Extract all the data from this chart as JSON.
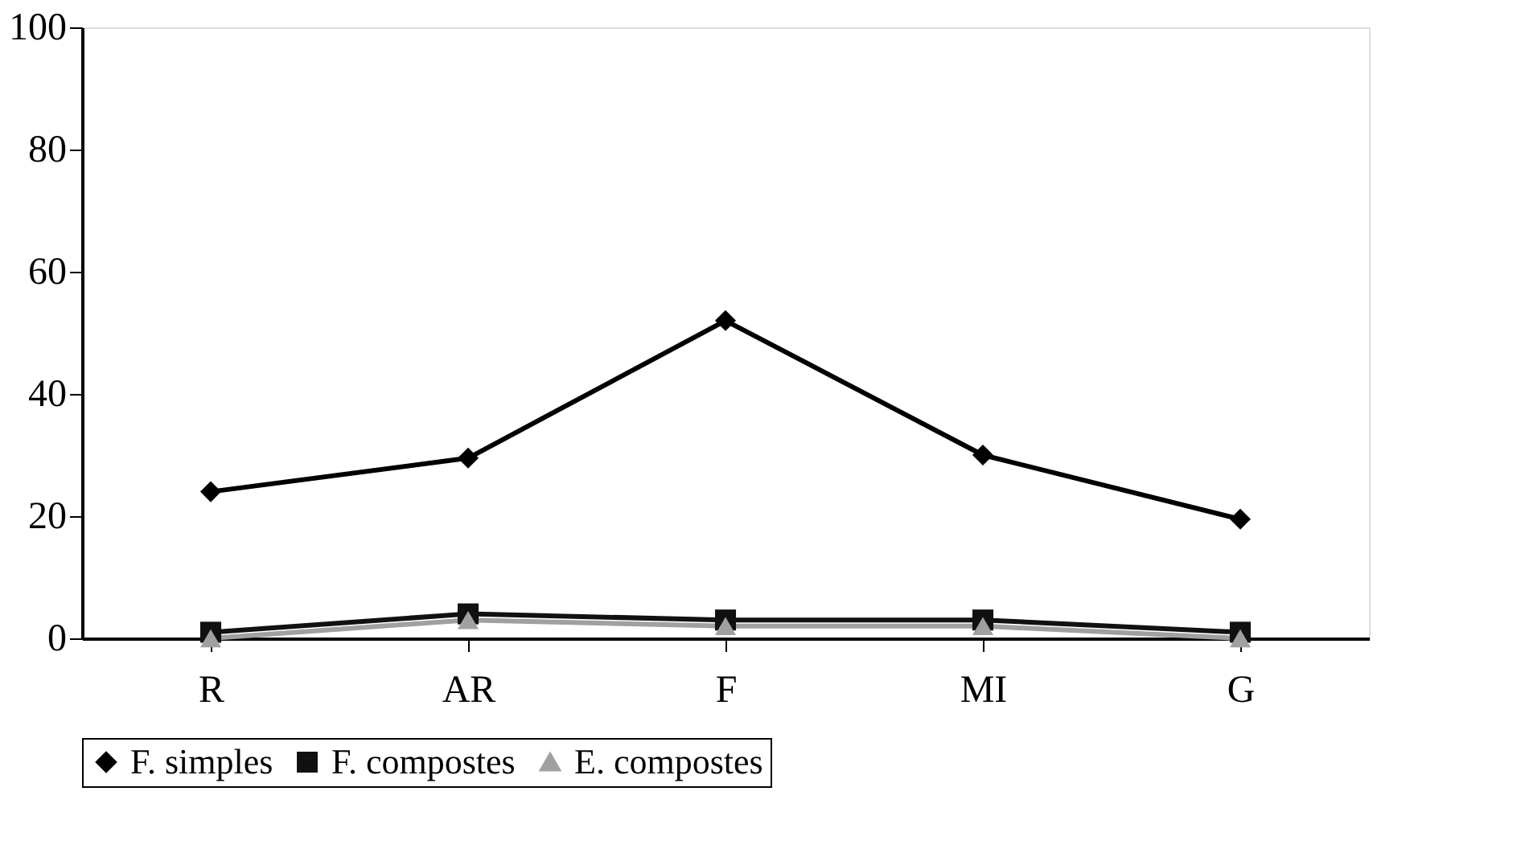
{
  "chart_data": {
    "type": "line",
    "categories": [
      "R",
      "AR",
      "F",
      "MI",
      "G"
    ],
    "series": [
      {
        "name": "F. simples",
        "color": "#000000",
        "marker": "diamond",
        "values": [
          24,
          29.5,
          52,
          30,
          19.5
        ]
      },
      {
        "name": "F. compostes",
        "color": "#111111",
        "marker": "square",
        "values": [
          1,
          4,
          3,
          3,
          1
        ]
      },
      {
        "name": "E. compostes",
        "color": "#a0a0a0",
        "marker": "triangle",
        "values": [
          0,
          3,
          2,
          2,
          0
        ]
      }
    ],
    "ylim": [
      0,
      100
    ],
    "yticks": [
      0,
      20,
      40,
      60,
      80,
      100
    ],
    "grid": false,
    "legend": "bottom"
  }
}
